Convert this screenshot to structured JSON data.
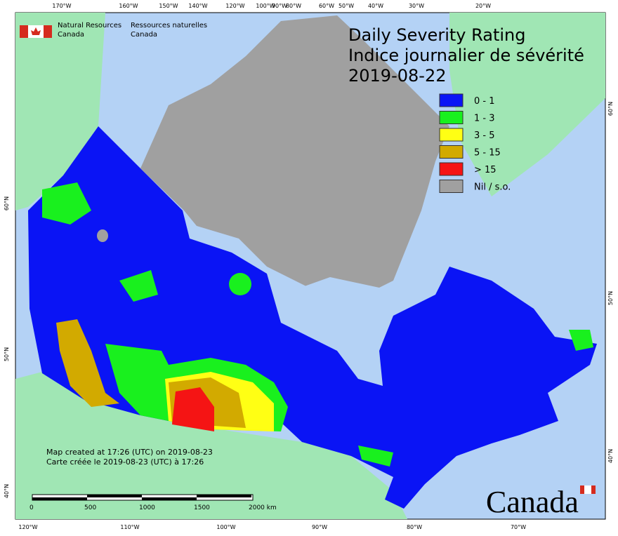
{
  "header": {
    "agency_en": [
      "Natural Resources",
      "Canada"
    ],
    "agency_fr": [
      "Ressources naturelles",
      "Canada"
    ]
  },
  "title": {
    "lines": [
      "Daily Severity Rating",
      "Indice journalier de sévérité",
      "2019-08-22"
    ]
  },
  "legend": {
    "items": [
      {
        "label": "0 - 1",
        "color": "#0a14f5"
      },
      {
        "label": "1 - 3",
        "color": "#19f01e"
      },
      {
        "label": "3 - 5",
        "color": "#ffff14"
      },
      {
        "label": "5 - 15",
        "color": "#d2aa00"
      },
      {
        "label": "> 15",
        "color": "#f51414"
      },
      {
        "label": "Nil / s.o.",
        "color": "#a0a0a0"
      }
    ]
  },
  "notes": [
    "Map created at 17:26 (UTC) on 2019-08-23",
    "Carte créée le 2019-08-23 (UTC) à 17:26"
  ],
  "scale_bar": {
    "labels": [
      "0",
      "500",
      "1000",
      "1500",
      "2000 km"
    ]
  },
  "graticule": {
    "top": [
      "170°W",
      "160°W",
      "150°W",
      "140°W",
      "120°W",
      "100°W",
      "90°W",
      "80°W",
      "60°W",
      "50°W",
      "40°W",
      "30°W",
      "20°W"
    ],
    "bottom": [
      "120°W",
      "110°W",
      "100°W",
      "90°W",
      "80°W",
      "70°W"
    ],
    "left": [
      "60°N",
      "50°N",
      "40°N"
    ],
    "right": [
      "60°N",
      "50°N",
      "40°N"
    ]
  },
  "wordmark": "Canada"
}
